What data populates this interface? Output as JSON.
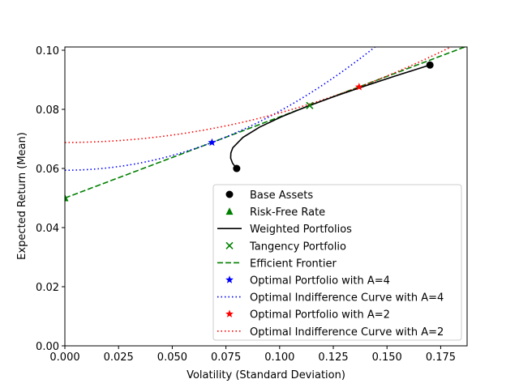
{
  "chart_data": {
    "type": "line",
    "title": "",
    "xlabel": "Volatility (Standard Deviation)",
    "ylabel": "Expected Return (Mean)",
    "xlim": [
      0,
      0.1873
    ],
    "ylim": [
      0,
      0.1011
    ],
    "xticks": [
      "0.000",
      "0.025",
      "0.050",
      "0.075",
      "0.100",
      "0.125",
      "0.150",
      "0.175"
    ],
    "yticks": [
      "0.00",
      "0.02",
      "0.04",
      "0.06",
      "0.08",
      "0.10"
    ],
    "grid": false,
    "legend_position": "lower-right",
    "series": [
      {
        "name": "Base Assets",
        "kind": "scatter",
        "marker": "circle",
        "color": "#000000",
        "points": [
          [
            0.08,
            0.06
          ],
          [
            0.17,
            0.095
          ]
        ]
      },
      {
        "name": "Risk-Free Rate",
        "kind": "scatter",
        "marker": "triangle",
        "color": "#008000",
        "points": [
          [
            0.0,
            0.05
          ]
        ]
      },
      {
        "name": "Weighted Portfolios",
        "kind": "line",
        "style": "solid",
        "color": "#000000",
        "points": [
          [
            0.08,
            0.06
          ],
          [
            0.0781,
            0.06175
          ],
          [
            0.0772,
            0.0635
          ],
          [
            0.0773,
            0.06525
          ],
          [
            0.0782,
            0.067
          ],
          [
            0.0829,
            0.0705
          ],
          [
            0.0907,
            0.074
          ],
          [
            0.1009,
            0.0775
          ],
          [
            0.1128,
            0.081
          ],
          [
            0.126,
            0.0845
          ],
          [
            0.1401,
            0.088
          ],
          [
            0.1548,
            0.0915
          ],
          [
            0.17,
            0.095
          ]
        ]
      },
      {
        "name": "Tangency Portfolio",
        "kind": "scatter",
        "marker": "x",
        "color": "#008000",
        "points": [
          [
            0.114,
            0.0813
          ]
        ]
      },
      {
        "name": "Efficient Frontier",
        "kind": "line",
        "style": "dashed",
        "color": "#008000",
        "points": [
          [
            0.0,
            0.05
          ],
          [
            0.1873,
            0.1014
          ]
        ]
      },
      {
        "name": "Optimal Portfolio with A=4",
        "kind": "scatter",
        "marker": "star",
        "color": "#0000ff",
        "points": [
          [
            0.0685,
            0.0688
          ]
        ]
      },
      {
        "name": "Optimal Indifference Curve with A=4",
        "kind": "curve",
        "style": "dotted",
        "color": "#0000ff",
        "utility": 0.0594,
        "risk_aversion": 4
      },
      {
        "name": "Optimal Portfolio with A=2",
        "kind": "scatter",
        "marker": "star",
        "color": "#ff0000",
        "points": [
          [
            0.137,
            0.0876
          ]
        ]
      },
      {
        "name": "Optimal Indifference Curve with A=2",
        "kind": "curve",
        "style": "dotted",
        "color": "#ff0000",
        "utility": 0.0688,
        "risk_aversion": 2
      }
    ]
  }
}
